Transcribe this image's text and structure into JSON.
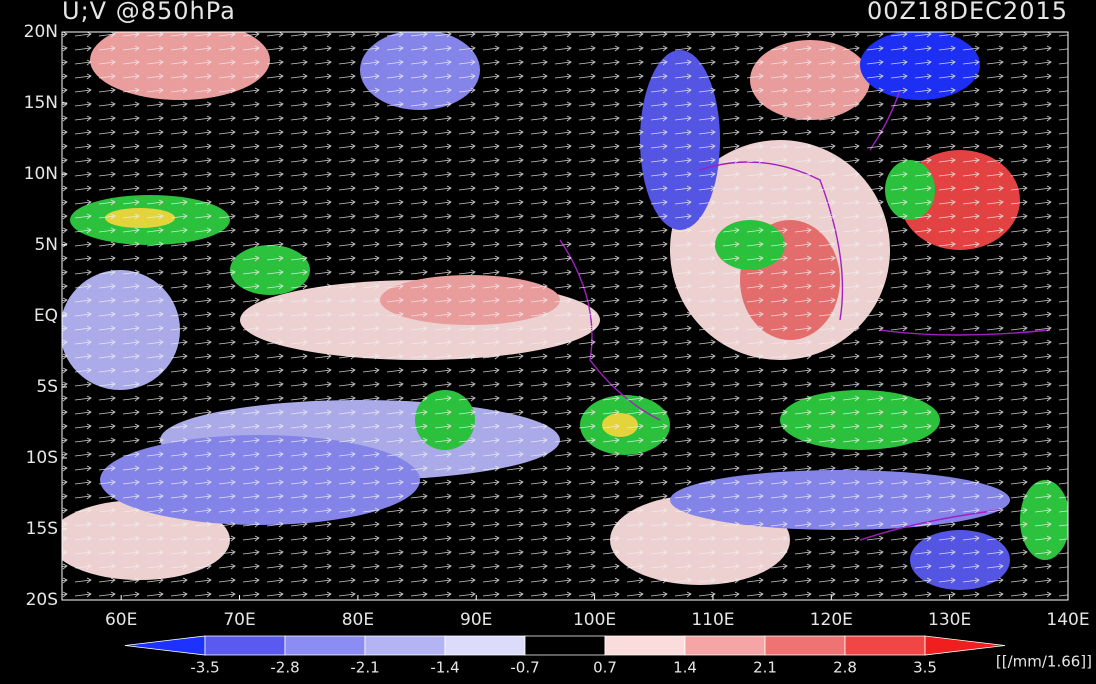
{
  "header": {
    "title": "U;V @850hPa",
    "timestamp": "00Z18DEC2015"
  },
  "map": {
    "lat_labels": [
      "20N",
      "15N",
      "10N",
      "5N",
      "EQ",
      "5S",
      "10S",
      "15S",
      "20S"
    ],
    "lon_labels": [
      "60E",
      "70E",
      "80E",
      "90E",
      "100E",
      "110E",
      "120E",
      "130E",
      "140E"
    ]
  },
  "colorbar": {
    "levels": [
      "-3.5",
      "-2.8",
      "-2.1",
      "-1.4",
      "-0.7",
      "0.7",
      "1.4",
      "2.1",
      "2.8",
      "3.5"
    ],
    "colors": [
      "#1e32ff",
      "#5a5af0",
      "#8c8cf5",
      "#b4b4f5",
      "#dcdcfa",
      "#000000",
      "#fadcdc",
      "#f5a5a5",
      "#f07373",
      "#f04646",
      "#f01e1e"
    ],
    "units": "[[/mm/1.66]]"
  }
}
